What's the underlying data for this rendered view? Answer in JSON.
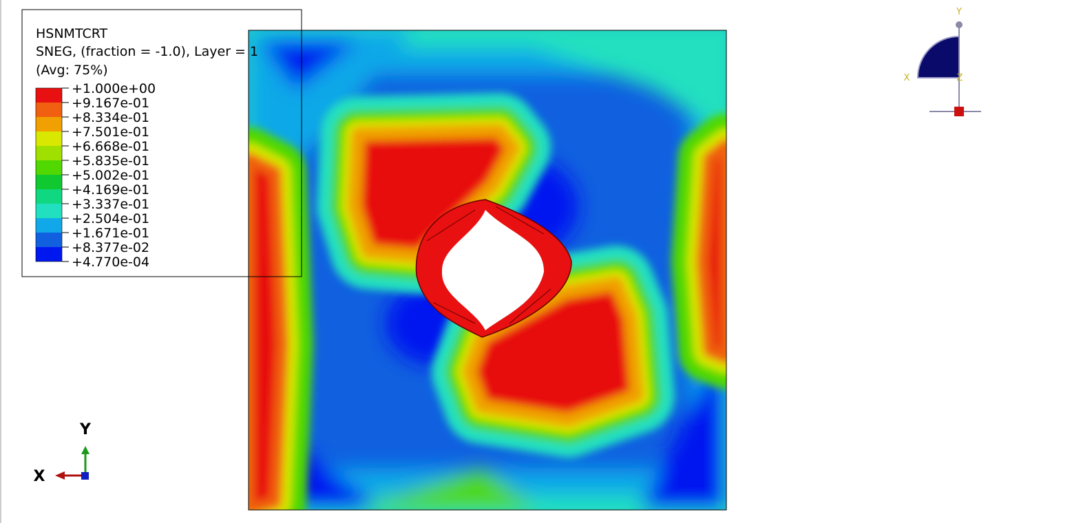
{
  "legend": {
    "title": "HSNMTCRT",
    "subtitle": "SNEG, (fraction = -1.0), Layer = 1",
    "average": "(Avg: 75%)",
    "levels": [
      "+1.000e+00",
      "+9.167e-01",
      "+8.334e-01",
      "+7.501e-01",
      "+6.668e-01",
      "+5.835e-01",
      "+5.002e-01",
      "+4.169e-01",
      "+3.337e-01",
      "+2.504e-01",
      "+1.671e-01",
      "+8.377e-02",
      "+4.770e-04"
    ],
    "colors": [
      "#e81010",
      "#f06010",
      "#f0a000",
      "#d8e800",
      "#a0e000",
      "#50d800",
      "#10c830",
      "#10d880",
      "#20e0c0",
      "#10a8e8",
      "#1060e0",
      "#0018f0"
    ]
  },
  "triad": {
    "y": "Y",
    "x": "X"
  },
  "view_cube": {
    "y": "Y",
    "x": "X",
    "z": "Z"
  }
}
